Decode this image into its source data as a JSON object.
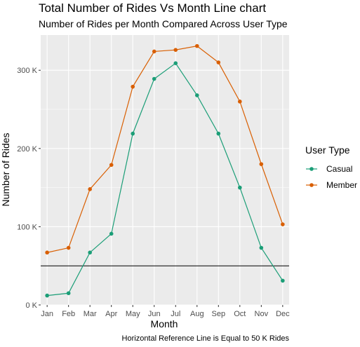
{
  "chart_data": {
    "type": "line",
    "title": "Total Number of Rides Vs Month Line chart",
    "subtitle": "Number of Rides per Month Compared Across User Type",
    "xlabel": "Month",
    "ylabel": "Number of Rides",
    "caption": "Horizontal Reference Line is Equal to 50 K Rides",
    "categories": [
      "Jan",
      "Feb",
      "Mar",
      "Apr",
      "May",
      "Jun",
      "Jul",
      "Aug",
      "Sep",
      "Oct",
      "Nov",
      "Dec"
    ],
    "ylim": [
      0,
      345000
    ],
    "yticks": [
      0,
      100000,
      200000,
      300000
    ],
    "ytick_labels": [
      "0 K",
      "100 K",
      "200 K",
      "300 K"
    ],
    "reference_line": {
      "y": 50000,
      "color": "#000000"
    },
    "grid": true,
    "legend": {
      "title": "User Type",
      "position": "right"
    },
    "series": [
      {
        "name": "Casual",
        "color": "#1b9e77",
        "values": [
          12000,
          15000,
          67000,
          91000,
          219000,
          289000,
          309000,
          268000,
          219000,
          150000,
          73000,
          31000
        ]
      },
      {
        "name": "Member",
        "color": "#d95f02",
        "values": [
          67000,
          73000,
          148000,
          179000,
          279000,
          324000,
          326000,
          331000,
          310000,
          260000,
          180000,
          103000
        ]
      }
    ]
  }
}
